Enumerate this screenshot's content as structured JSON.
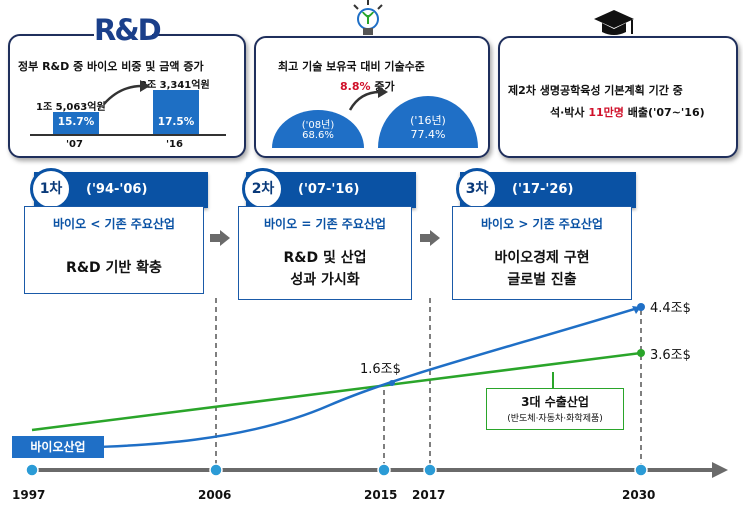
{
  "top": {
    "logo": "R&D",
    "box1": {
      "title": "정부 R&D 중 바이오 비중 및 금액 증가",
      "amount_2007": "1조 5,063억원",
      "amount_2016": "3조 3,341억원",
      "bar_2007_pct": "15.7%",
      "bar_2016_pct": "17.5%",
      "year_2007": "'07",
      "year_2016": "'16"
    },
    "box2": {
      "title": "최고 기술 보유국 대비 기술수준",
      "increase": "8.8%",
      "increase_suffix": " 증가",
      "dome1_year": "('08년)",
      "dome1_value": "68.6%",
      "dome2_year": "('16년)",
      "dome2_value": "77.4%"
    },
    "box3": {
      "line1": "제2차 생명공학육성 기본계획 기간 중",
      "line2_prefix": "석·박사 ",
      "line2_highlight": "11만명",
      "line2_suffix": " 배출('07~'16)"
    }
  },
  "stages": [
    {
      "num": "1차",
      "period": "('94-'06)",
      "sub": "바이오 < 기존 주요산업",
      "main1": "R&D 기반 확충",
      "main2": ""
    },
    {
      "num": "2차",
      "period": "('07-'16)",
      "sub": "바이오 = 기존 주요산업",
      "main1": "R&D 및 산업",
      "main2": "성과 가시화"
    },
    {
      "num": "3차",
      "period": "('17-'26)",
      "sub": "바이오 > 기존 주요산업",
      "main1": "바이오경제 구현",
      "main2": "글로벌 진출"
    }
  ],
  "timeline": {
    "years": [
      "1997",
      "2006",
      "2015",
      "2017",
      "2030"
    ],
    "bio_label": "바이오산업",
    "cross_value": "1.6조$",
    "bio_end_value": "4.4조$",
    "export_end_value": "3.6조$",
    "export_label": "3대 수출산업",
    "export_sub": "(반도체·자동차·화학제품)"
  },
  "colors": {
    "blue": "#1f6fc6",
    "dark_blue": "#0a52a4",
    "green": "#2aa52a",
    "red": "#d0102a",
    "axis": "#6a6a6a"
  }
}
